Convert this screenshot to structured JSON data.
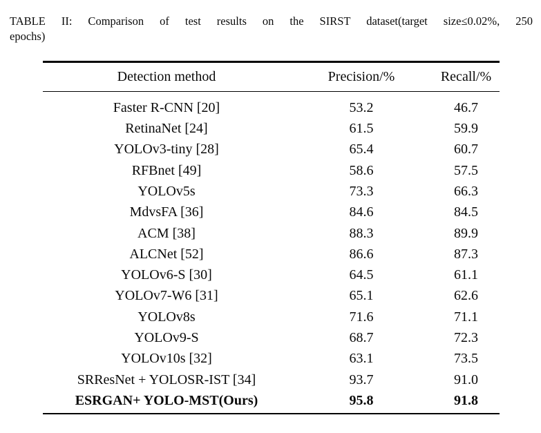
{
  "caption": {
    "line1": "TABLE II: Comparison of test results on the SIRST dataset(target size≤0.02%, 250",
    "line2": "epochs)"
  },
  "table": {
    "columns": [
      "Detection method",
      "Precision/%",
      "Recall/%"
    ],
    "rows": [
      {
        "method": "Faster R-CNN [20]",
        "precision": "53.2",
        "recall": "46.7",
        "bold": false
      },
      {
        "method": "RetinaNet [24]",
        "precision": "61.5",
        "recall": "59.9",
        "bold": false
      },
      {
        "method": "YOLOv3-tiny [28]",
        "precision": "65.4",
        "recall": "60.7",
        "bold": false
      },
      {
        "method": "RFBnet [49]",
        "precision": "58.6",
        "recall": "57.5",
        "bold": false
      },
      {
        "method": "YOLOv5s",
        "precision": "73.3",
        "recall": "66.3",
        "bold": false
      },
      {
        "method": "MdvsFA [36]",
        "precision": "84.6",
        "recall": "84.5",
        "bold": false
      },
      {
        "method": "ACM [38]",
        "precision": "88.3",
        "recall": "89.9",
        "bold": false
      },
      {
        "method": "ALCNet [52]",
        "precision": "86.6",
        "recall": "87.3",
        "bold": false
      },
      {
        "method": "YOLOv6-S [30]",
        "precision": "64.5",
        "recall": "61.1",
        "bold": false
      },
      {
        "method": "YOLOv7-W6 [31]",
        "precision": "65.1",
        "recall": "62.6",
        "bold": false
      },
      {
        "method": "YOLOv8s",
        "precision": "71.6",
        "recall": "71.1",
        "bold": false
      },
      {
        "method": "YOLOv9-S",
        "precision": "68.7",
        "recall": "72.3",
        "bold": false
      },
      {
        "method": "YOLOv10s [32]",
        "precision": "63.1",
        "recall": "73.5",
        "bold": false
      },
      {
        "method": "SRResNet + YOLOSR-IST [34]",
        "precision": "93.7",
        "recall": "91.0",
        "bold": false
      },
      {
        "method": "ESRGAN+ YOLO-MST(Ours)",
        "precision": "95.8",
        "recall": "91.8",
        "bold": true
      }
    ]
  },
  "colors": {
    "background": "#ffffff",
    "text": "#0a0a0a",
    "rule": "#000000"
  }
}
